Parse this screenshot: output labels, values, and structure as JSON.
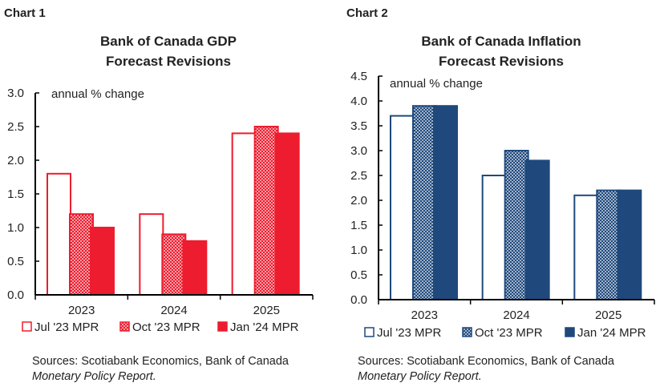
{
  "chart_data": [
    {
      "type": "bar",
      "label": "Chart 1",
      "title_lines": [
        "Bank of Canada GDP",
        "Forecast Revisions"
      ],
      "ylabel": "annual % change",
      "categories": [
        "2023",
        "2024",
        "2025"
      ],
      "ylim": [
        0,
        3.0
      ],
      "yticks": [
        "0.0",
        "0.5",
        "1.0",
        "1.5",
        "2.0",
        "2.5",
        "3.0"
      ],
      "grid": false,
      "legend_position": "bottom",
      "color": "#ED1C2E",
      "series": [
        {
          "name": "Jul '23 MPR",
          "style": "outline",
          "values": [
            1.8,
            1.2,
            2.4
          ]
        },
        {
          "name": "Oct '23 MPR",
          "style": "pattern",
          "values": [
            1.2,
            0.9,
            2.5
          ]
        },
        {
          "name": "Jan '24 MPR",
          "style": "solid",
          "values": [
            1.0,
            0.8,
            2.4
          ]
        }
      ],
      "source_lines": [
        "Sources: Scotiabank Economics, Bank of Canada",
        "Monetary Policy Report."
      ]
    },
    {
      "type": "bar",
      "label": "Chart 2",
      "title_lines": [
        "Bank of Canada Inflation",
        "Forecast Revisions"
      ],
      "ylabel": "annual % change",
      "categories": [
        "2023",
        "2024",
        "2025"
      ],
      "ylim": [
        0,
        4.5
      ],
      "yticks": [
        "0.0",
        "0.5",
        "1.0",
        "1.5",
        "2.0",
        "2.5",
        "3.0",
        "3.5",
        "4.0",
        "4.5"
      ],
      "grid": false,
      "legend_position": "bottom",
      "color": "#1F497D",
      "series": [
        {
          "name": "Jul '23 MPR",
          "style": "outline",
          "values": [
            3.7,
            2.5,
            2.1
          ]
        },
        {
          "name": "Oct '23 MPR",
          "style": "pattern",
          "values": [
            3.9,
            3.0,
            2.2
          ]
        },
        {
          "name": "Jan '24 MPR",
          "style": "solid",
          "values": [
            3.9,
            2.8,
            2.2
          ]
        }
      ],
      "source_lines": [
        "Sources: Scotiabank Economics, Bank of Canada",
        "Monetary Policy Report."
      ]
    }
  ]
}
